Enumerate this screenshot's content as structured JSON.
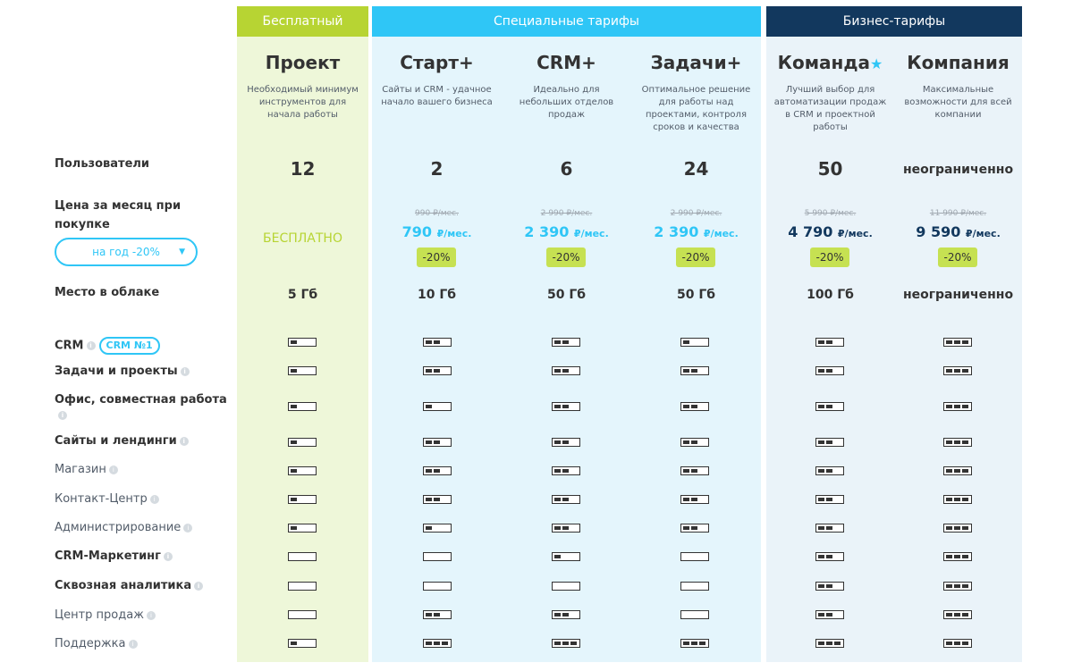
{
  "groups": {
    "free": "Бесплатный",
    "special": "Специальные тарифы",
    "business": "Бизнес-тарифы"
  },
  "plans": [
    {
      "name": "Проект",
      "desc": [
        "Необходимый минимум",
        "инструментов для",
        "начала работы"
      ]
    },
    {
      "name": "Старт+",
      "desc": [
        "Сайты и CRM - удачное",
        "начало вашего бизнеса"
      ]
    },
    {
      "name": "CRM+",
      "desc": [
        "Идеально для",
        "небольших отделов",
        "продаж"
      ]
    },
    {
      "name": "Задачи+",
      "desc": [
        "Оптимальное решение",
        "для работы над",
        "проектами, контроля",
        "сроков и качества"
      ]
    },
    {
      "name": "Команда",
      "star": "★",
      "desc": [
        "Лучший выбор для",
        "автоматизации продаж",
        "в CRM и проектной",
        "работы"
      ]
    },
    {
      "name": "Компания",
      "desc": [
        "Максимальные",
        "возможности для всей",
        "компании"
      ]
    }
  ],
  "rows": {
    "users_label": "Пользователи",
    "users": [
      "12",
      "2",
      "6",
      "24",
      "50",
      "неограниченно"
    ],
    "price_label_1": "Цена за месяц при",
    "price_label_2": "покупке",
    "period_select": "на год -20%",
    "free_price": "БЕСПЛАТНО",
    "old_prices": [
      "990 ₽/мес.",
      "2 990 ₽/мес.",
      "2 990 ₽/мес.",
      "5 990 ₽/мес.",
      "11 990 ₽/мес."
    ],
    "new_prices": [
      "790",
      "2 390",
      "2 390",
      "4 790",
      "9 590"
    ],
    "price_unit": "₽/мес.",
    "discount": "-20%",
    "storage_label": "Место в облаке",
    "storage": [
      "5 Гб",
      "10 Гб",
      "50 Гб",
      "50 Гб",
      "100 Гб",
      "неограниченно"
    ]
  },
  "features": [
    {
      "label": "CRM",
      "badge": "CRM №1",
      "style": "bold",
      "levels": [
        1,
        2,
        2,
        1,
        2,
        3
      ]
    },
    {
      "label": "Задачи и проекты",
      "style": "bold",
      "levels": [
        1,
        2,
        2,
        2,
        2,
        3
      ]
    },
    {
      "label": "Офис, совместная работа",
      "style": "bold",
      "levels": [
        1,
        1,
        2,
        2,
        2,
        3
      ]
    },
    {
      "label": "Сайты и лендинги",
      "style": "bold",
      "levels": [
        1,
        2,
        2,
        2,
        2,
        3
      ]
    },
    {
      "label": "Магазин",
      "style": "light",
      "levels": [
        1,
        2,
        2,
        2,
        2,
        3
      ]
    },
    {
      "label": "Контакт-Центр",
      "style": "light",
      "levels": [
        1,
        2,
        2,
        2,
        2,
        3
      ]
    },
    {
      "label": "Администрирование",
      "style": "light",
      "levels": [
        1,
        1,
        2,
        2,
        2,
        3
      ]
    },
    {
      "label": "CRM-Маркетинг",
      "style": "bold",
      "levels": [
        0,
        0,
        1,
        0,
        2,
        3
      ]
    },
    {
      "label": "Сквозная аналитика",
      "style": "bold",
      "levels": [
        0,
        0,
        0,
        0,
        2,
        3
      ]
    },
    {
      "label": "Центр продаж",
      "style": "light",
      "levels": [
        0,
        2,
        2,
        0,
        2,
        3
      ]
    },
    {
      "label": "Поддержка",
      "style": "light",
      "levels": [
        1,
        3,
        3,
        3,
        3,
        3
      ]
    }
  ],
  "info_icon": "i"
}
